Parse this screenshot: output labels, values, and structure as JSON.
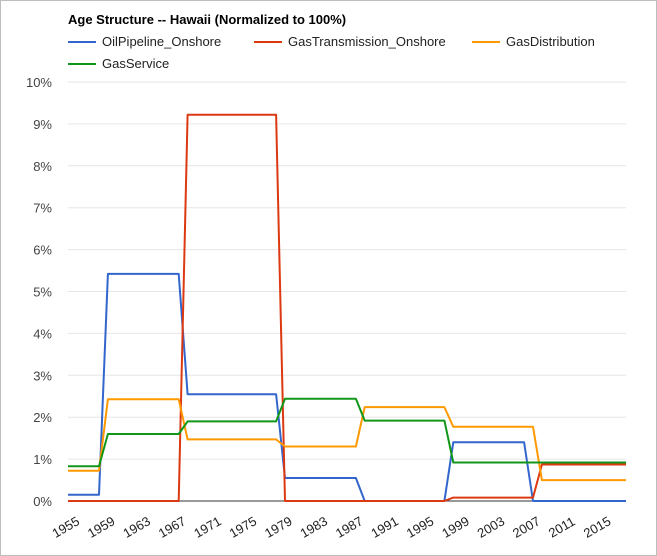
{
  "chart_data": {
    "type": "line",
    "title": "Age Structure -- Hawaii (Normalized to 100%)",
    "xlabel": "",
    "ylabel": "",
    "legend_position": "top",
    "grid": true,
    "x_tick_labels": [
      "1955",
      "1959",
      "1963",
      "1967",
      "1971",
      "1975",
      "1979",
      "1983",
      "1987",
      "1991",
      "1995",
      "1999",
      "2003",
      "2007",
      "2011",
      "2015"
    ],
    "y_tick_labels": [
      "0%",
      "1%",
      "2%",
      "3%",
      "4%",
      "5%",
      "6%",
      "7%",
      "8%",
      "9%",
      "10%"
    ],
    "xlim": [
      1955,
      2018
    ],
    "ylim": [
      0,
      10
    ],
    "series": [
      {
        "name": "OilPipeline_Onshore",
        "color": "#3366cc",
        "points": [
          [
            1955,
            0.15
          ],
          [
            1958.5,
            0.15
          ],
          [
            1959.5,
            5.42
          ],
          [
            1967.5,
            5.42
          ],
          [
            1968.5,
            2.55
          ],
          [
            1978.5,
            2.55
          ],
          [
            1979.5,
            0.55
          ],
          [
            1987.5,
            0.55
          ],
          [
            1988.5,
            0.0
          ],
          [
            1997.5,
            0.0
          ],
          [
            1998.5,
            1.4
          ],
          [
            2006.5,
            1.4
          ],
          [
            2007.5,
            0.0
          ],
          [
            2018,
            0.0
          ]
        ]
      },
      {
        "name": "GasTransmission_Onshore",
        "color": "#dc3912",
        "points": [
          [
            1955,
            0.0
          ],
          [
            1967.5,
            0.0
          ],
          [
            1968.5,
            9.22
          ],
          [
            1978.5,
            9.22
          ],
          [
            1979.5,
            0.0
          ],
          [
            1997.5,
            0.0
          ],
          [
            1998.5,
            0.08
          ],
          [
            2007.5,
            0.08
          ],
          [
            2008.5,
            0.87
          ],
          [
            2018,
            0.87
          ]
        ]
      },
      {
        "name": "GasDistribution",
        "color": "#ff9900",
        "points": [
          [
            1955,
            0.72
          ],
          [
            1958.5,
            0.72
          ],
          [
            1959.5,
            2.43
          ],
          [
            1967.5,
            2.43
          ],
          [
            1968.5,
            1.47
          ],
          [
            1978.5,
            1.47
          ],
          [
            1979.5,
            1.3
          ],
          [
            1987.5,
            1.3
          ],
          [
            1988.5,
            2.24
          ],
          [
            1997.5,
            2.24
          ],
          [
            1998.5,
            1.77
          ],
          [
            2007.5,
            1.77
          ],
          [
            2008.5,
            0.5
          ],
          [
            2018,
            0.5
          ]
        ]
      },
      {
        "name": "GasService",
        "color": "#109618",
        "points": [
          [
            1955,
            0.83
          ],
          [
            1958.5,
            0.83
          ],
          [
            1959.5,
            1.6
          ],
          [
            1967.5,
            1.6
          ],
          [
            1968.5,
            1.9
          ],
          [
            1978.5,
            1.9
          ],
          [
            1979.5,
            2.44
          ],
          [
            1987.5,
            2.44
          ],
          [
            1988.5,
            1.92
          ],
          [
            1997.5,
            1.92
          ],
          [
            1998.5,
            0.92
          ],
          [
            2018,
            0.92
          ]
        ]
      }
    ]
  }
}
